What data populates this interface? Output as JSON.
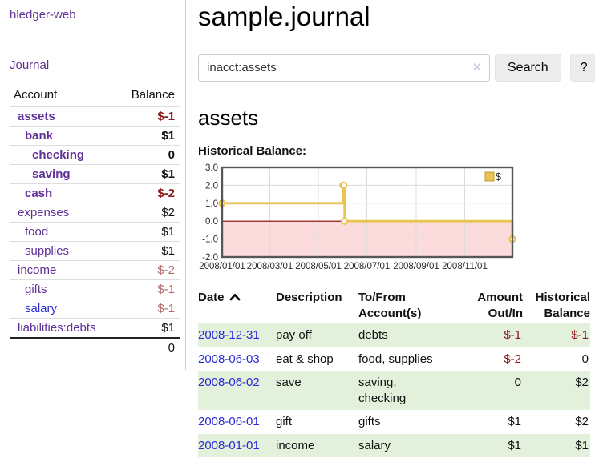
{
  "colors": {
    "link_purple": "#5f3096",
    "link_blue": "#2a2ad6",
    "negative_strong": "#8b1a1a",
    "negative_soft": "#b36b6b",
    "row_stripe_green": "#e2f0dc",
    "chart_line_gold": "#e9c353",
    "chart_negative_fill": "#fbdbdb",
    "chart_zero_line": "#8b0000"
  },
  "sidebar": {
    "brand": "hledger-web",
    "journal_link": "Journal",
    "accounts": {
      "header": {
        "account": "Account",
        "balance": "Balance"
      },
      "rows": [
        {
          "name": "assets",
          "indent": 1,
          "bold": true,
          "balance": "$-1",
          "neg": "strong"
        },
        {
          "name": "bank",
          "indent": 2,
          "bold": true,
          "balance": "$1"
        },
        {
          "name": "checking",
          "indent": 3,
          "bold": true,
          "balance": "0"
        },
        {
          "name": "saving",
          "indent": 3,
          "bold": true,
          "balance": "$1"
        },
        {
          "name": "cash",
          "indent": 2,
          "bold": true,
          "balance": "$-2",
          "neg": "strong"
        },
        {
          "name": "expenses",
          "indent": 1,
          "bold": false,
          "balance": "$2"
        },
        {
          "name": "food",
          "indent": 2,
          "bold": false,
          "balance": "$1"
        },
        {
          "name": "supplies",
          "indent": 2,
          "bold": false,
          "balance": "$1"
        },
        {
          "name": "income",
          "indent": 1,
          "bold": false,
          "balance": "$-2",
          "neg": "soft"
        },
        {
          "name": "gifts",
          "indent": 2,
          "bold": false,
          "balance": "$-1",
          "neg": "soft"
        },
        {
          "name": "salary",
          "indent": 2,
          "bold": false,
          "balance": "$-1",
          "neg": "soft",
          "blue": true
        },
        {
          "name": "liabilities:debts",
          "indent": 1,
          "bold": false,
          "balance": "$1"
        }
      ],
      "total": "0"
    }
  },
  "header": {
    "title": "sample.journal"
  },
  "search": {
    "value": "inacct:assets",
    "clear_icon": "✕",
    "search_button": "Search",
    "help_button": "?"
  },
  "account_page": {
    "title": "assets",
    "chart_label": "Historical Balance:"
  },
  "chart_data": {
    "type": "line",
    "step": true,
    "title": "Historical Balance:",
    "series": [
      {
        "name": "$",
        "color": "#e9c353",
        "points": [
          [
            "2008-01-01",
            1
          ],
          [
            "2008-06-01",
            2
          ],
          [
            "2008-06-02",
            2
          ],
          [
            "2008-06-03",
            0
          ],
          [
            "2008-12-31",
            -1
          ]
        ]
      }
    ],
    "x_range": [
      "2008-01-01",
      "2008-12-31"
    ],
    "ylim": [
      -2,
      3
    ],
    "y_ticks": [
      "3.0",
      "2.0",
      "1.0",
      "0.0",
      "-1.0",
      "-2.0"
    ],
    "x_ticks": [
      "2008/01/01",
      "2008/03/01",
      "2008/05/01",
      "2008/07/01",
      "2008/09/01",
      "2008/11/01"
    ],
    "grid": true,
    "legend_position": "top-right",
    "negative_region_color": "#fbdbdb",
    "zero_line_color": "#8b0000"
  },
  "register": {
    "headers": [
      {
        "line1": "Date",
        "line2": ""
      },
      {
        "line1": "Description",
        "line2": ""
      },
      {
        "line1": "To/From",
        "line2": "Account(s)"
      },
      {
        "line1": "Amount",
        "line2": "Out/In"
      },
      {
        "line1": "Historical",
        "line2": "Balance"
      }
    ],
    "rows": [
      {
        "date": "2008-12-31",
        "description": "pay off",
        "accounts": "debts",
        "amount": "$-1",
        "amount_neg": true,
        "balance": "$-1",
        "balance_neg": true
      },
      {
        "date": "2008-06-03",
        "description": "eat & shop",
        "accounts": "food, supplies",
        "amount": "$-2",
        "amount_neg": true,
        "balance": "0",
        "balance_neg": false
      },
      {
        "date": "2008-06-02",
        "description": "save",
        "accounts": "saving, checking",
        "amount": "0",
        "amount_neg": false,
        "balance": "$2",
        "balance_neg": false
      },
      {
        "date": "2008-06-01",
        "description": "gift",
        "accounts": "gifts",
        "amount": "$1",
        "amount_neg": false,
        "balance": "$2",
        "balance_neg": false
      },
      {
        "date": "2008-01-01",
        "description": "income",
        "accounts": "salary",
        "amount": "$1",
        "amount_neg": false,
        "balance": "$1",
        "balance_neg": false
      }
    ]
  }
}
